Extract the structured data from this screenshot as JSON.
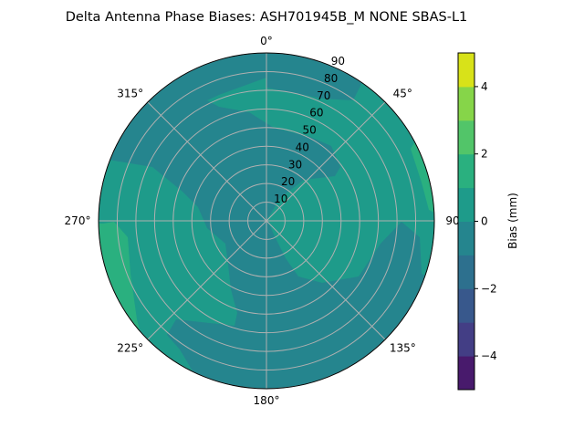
{
  "chart_data": {
    "type": "contour",
    "projection": "polar",
    "title": "Delta Antenna Phase Biases: ASH701945B_M    NONE SBAS-L1",
    "theta_direction": "clockwise",
    "theta_zero": "north",
    "theta_ticks": [
      "0°",
      "45°",
      "90°",
      "135°",
      "180°",
      "225°",
      "270°",
      "315°"
    ],
    "r_ticks": [
      "10",
      "20",
      "30",
      "40",
      "50",
      "60",
      "70",
      "80",
      "90"
    ],
    "r_range": [
      0,
      90
    ],
    "grid": true,
    "levels": [
      -5,
      -4,
      -3,
      -2,
      -1,
      0,
      1,
      2,
      3,
      4,
      5
    ],
    "level_colors": [
      "#481a6c",
      "#433e85",
      "#38588c",
      "#2d708e",
      "#25858e",
      "#1e9b8a",
      "#2ab07f",
      "#52c569",
      "#86d549",
      "#d8e219"
    ],
    "regions": [
      {
        "level_range": [
          -1,
          0
        ],
        "where": "background: center, upper-left, lower half"
      },
      {
        "level_range": [
          0,
          1
        ],
        "where": "north-east and east sector (~0°–135°), west sector (~225°–300°)"
      },
      {
        "level_range": [
          1,
          2
        ],
        "where": "edge near 70°–80° and edge near 250°–265°"
      }
    ],
    "colorbar": {
      "label": "Bias (mm)",
      "range": [
        -5,
        5
      ],
      "ticks": [
        "−4",
        "−2",
        "0",
        "2",
        "4"
      ],
      "tick_values": [
        -4,
        -2,
        0,
        2,
        4
      ]
    }
  }
}
